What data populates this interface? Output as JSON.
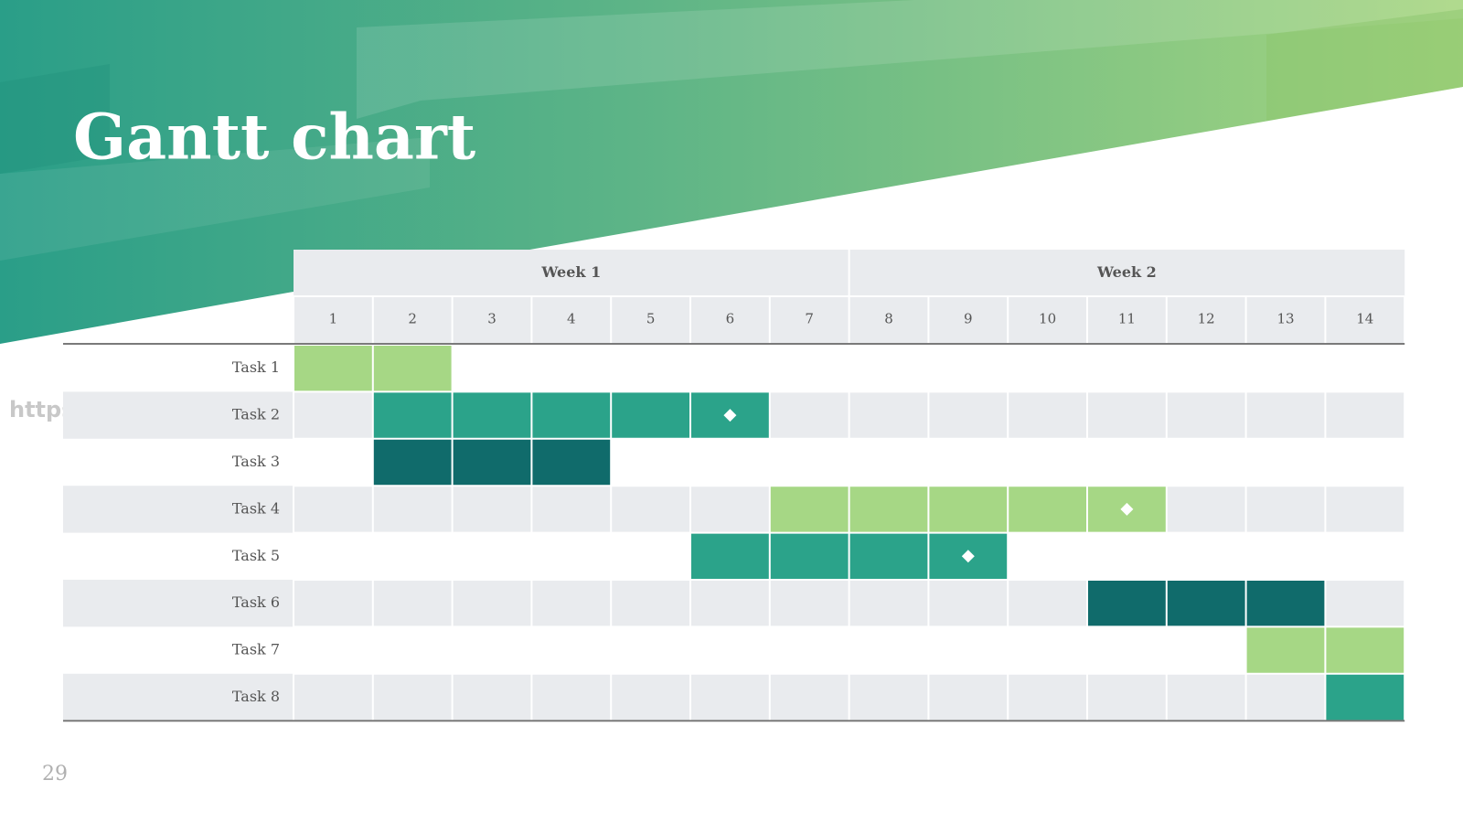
{
  "title": "Gantt chart",
  "watermark": "https://ppt.pkll.de",
  "page_number": "29",
  "weeks": [
    "Week 1",
    "Week 2"
  ],
  "days": [
    1,
    2,
    3,
    4,
    5,
    6,
    7,
    8,
    9,
    10,
    11,
    12,
    13,
    14
  ],
  "tasks": [
    {
      "label": "Task 1",
      "start": 1,
      "end": 2,
      "color": "#a6d785"
    },
    {
      "label": "Task 2",
      "start": 2,
      "end": 6,
      "color": "#2ba38a",
      "milestone": 6
    },
    {
      "label": "Task 3",
      "start": 2,
      "end": 4,
      "color": "#106b6b"
    },
    {
      "label": "Task 4",
      "start": 7,
      "end": 11,
      "color": "#a6d785",
      "milestone": 11
    },
    {
      "label": "Task 5",
      "start": 6,
      "end": 9,
      "color": "#2ba38a",
      "milestone": 9
    },
    {
      "label": "Task 6",
      "start": 11,
      "end": 13,
      "color": "#106b6b"
    },
    {
      "label": "Task 7",
      "start": 13,
      "end": 14,
      "color": "#a6d785"
    },
    {
      "label": "Task 8",
      "start": 14,
      "end": 14,
      "color": "#2ba38a"
    }
  ]
}
